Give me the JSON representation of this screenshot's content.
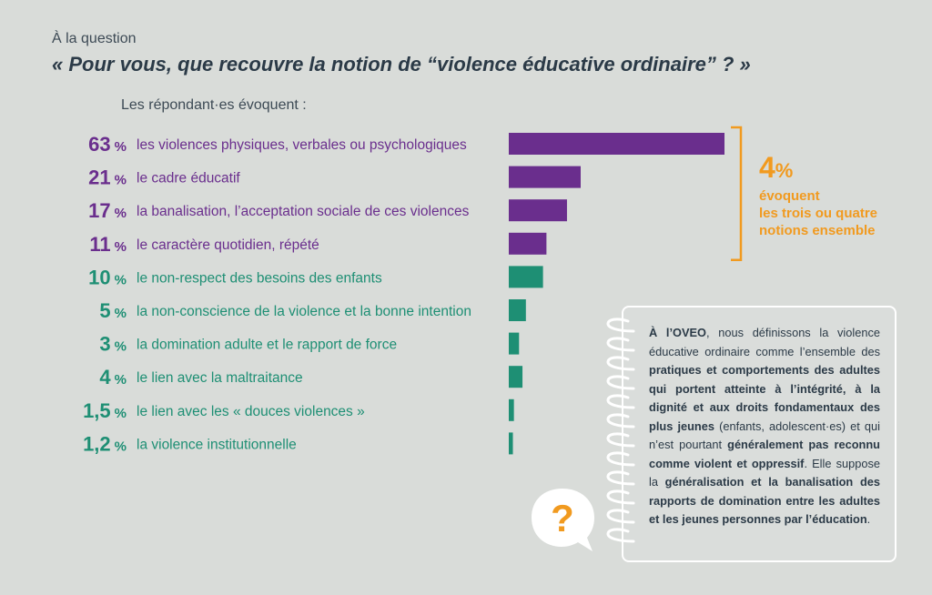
{
  "header": {
    "intro": "À la question",
    "question": "« Pour vous, que recouvre la notion de “violence éducative ordinaire” ? »",
    "respondents": "Les répondant·es évoquent :"
  },
  "colors": {
    "background": "#d9dcd9",
    "purple": "#6a2e8d",
    "green": "#1e8f74",
    "orange": "#f19a1f",
    "text": "#2b3a47"
  },
  "chart_data": {
    "type": "bar",
    "orientation": "horizontal",
    "unit": "%",
    "categories": [
      "les violences physiques, verbales ou psychologiques",
      "le cadre éducatif",
      "la banalisation, l’acceptation sociale de ces violences",
      "le caractère quotidien, répété",
      "le non-respect des besoins des enfants",
      "la non-conscience de la violence et la bonne intention",
      "la domination adulte et le rapport de force",
      "le lien avec la maltraitance",
      "le lien avec les « douces violences »",
      "la violence institutionnelle"
    ],
    "values": [
      63,
      21,
      17,
      11,
      10,
      5,
      3,
      4,
      1.5,
      1.2
    ],
    "value_labels": [
      "63",
      "21",
      "17",
      "11",
      "10",
      "5",
      "3",
      "4",
      "1,5",
      "1,2"
    ],
    "bar_colors": [
      "purple",
      "purple",
      "purple",
      "purple",
      "green",
      "green",
      "green",
      "green",
      "green",
      "green"
    ],
    "grouped_bracket": {
      "covers": [
        0,
        1,
        2,
        3
      ],
      "value": "4",
      "unit": "%",
      "text": [
        "évoquent",
        "les trois ou quatre",
        "notions ensemble"
      ]
    }
  },
  "notebook": {
    "segments": [
      {
        "t": "À l’OVEO",
        "b": true
      },
      {
        "t": ", nous définissons la violence éducative ordinaire comme l’ensemble des ",
        "b": false
      },
      {
        "t": "pratiques et comportements des adultes qui portent atteinte à l’intégrité, à la dignité et aux droits fondamentaux des plus jeunes",
        "b": true
      },
      {
        "t": " (enfants, adolescent·es) et qui n’est pourtant ",
        "b": false
      },
      {
        "t": "généralement pas reconnu comme violent et oppressif",
        "b": true
      },
      {
        "t": ". Elle suppose la ",
        "b": false
      },
      {
        "t": "généralisation et la banalisation des rapports de domination entre les adultes et les jeunes personnes par l’éducation",
        "b": true
      },
      {
        "t": ".",
        "b": false
      }
    ]
  },
  "icons": {
    "question_bubble": "question-mark-speech-bubble-icon",
    "rings": "notebook-spiral-rings-icon",
    "bracket": "right-bracket-icon"
  }
}
